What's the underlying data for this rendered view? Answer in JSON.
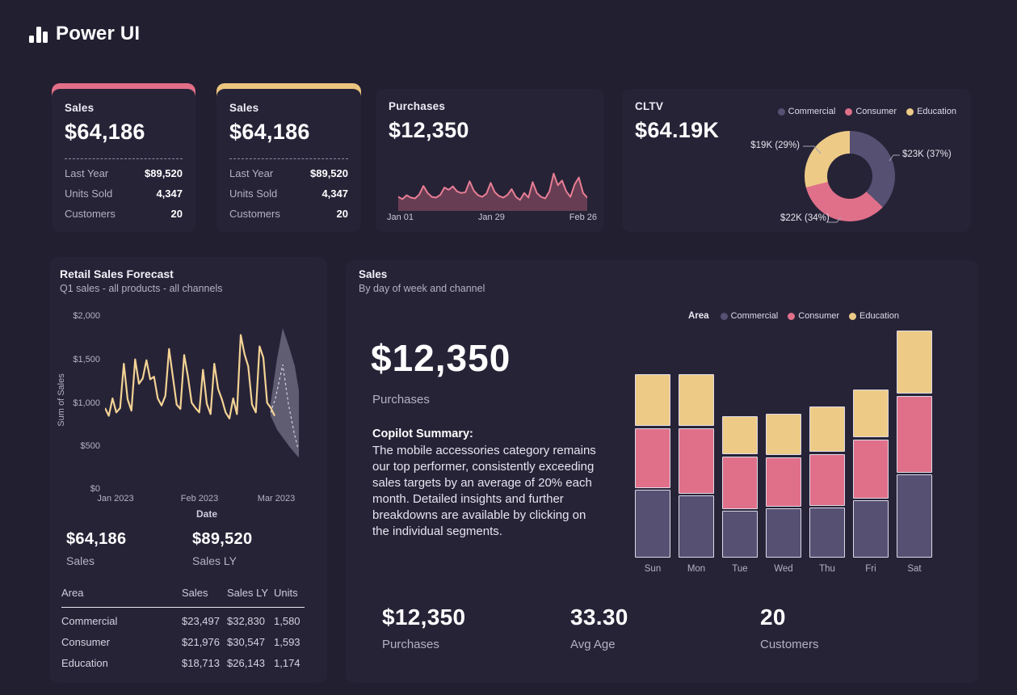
{
  "app": {
    "title": "Power UI"
  },
  "colors": {
    "page_bg": "#221f31",
    "card_bg": "#272337",
    "accent_pink": "#e26e87",
    "accent_gold": "#ecc57e",
    "commercial": "#565073",
    "consumer": "#e0708a",
    "education": "#edcb87",
    "line_gold": "#f3d394",
    "spark_pink": "#e87e95",
    "forecast_gray": "#9a96ab",
    "text_secondary": "#b5b1c4"
  },
  "kpi_cards": [
    {
      "title": "Sales",
      "value": "$64,186",
      "accent": "#e26e87",
      "rows": [
        {
          "label": "Last Year",
          "value": "$89,520"
        },
        {
          "label": "Units Sold",
          "value": "4,347"
        },
        {
          "label": "Customers",
          "value": "20"
        }
      ]
    },
    {
      "title": "Sales",
      "value": "$64,186",
      "accent": "#ecc57e",
      "rows": [
        {
          "label": "Last Year",
          "value": "$89,520"
        },
        {
          "label": "Units Sold",
          "value": "4,347"
        },
        {
          "label": "Customers",
          "value": "20"
        }
      ]
    }
  ],
  "purchases_card": {
    "title": "Purchases",
    "value": "$12,350",
    "x_ticks": [
      "Jan 01",
      "Jan 29",
      "Feb 26"
    ]
  },
  "cltv_card": {
    "title": "CLTV",
    "value": "$64.19K",
    "legend": [
      "Commercial",
      "Consumer",
      "Education"
    ],
    "callouts": {
      "education": "$19K (29%)",
      "commercial": "$23K (37%)",
      "consumer": "$22K (34%)"
    }
  },
  "forecast_card": {
    "title": "Retail Sales Forecast",
    "subtitle": "Q1 sales - all products - all channels",
    "ylabel": "Sum of Sales",
    "xlabel": "Date",
    "y_ticks": [
      "$2,000",
      "$1,500",
      "$1,000",
      "$500",
      "$0"
    ],
    "x_ticks": [
      "Jan 2023",
      "Feb 2023",
      "Mar 2023"
    ],
    "kpis": [
      {
        "value": "$64,186",
        "label": "Sales"
      },
      {
        "value": "$89,520",
        "label": "Sales LY"
      }
    ],
    "table": {
      "columns": [
        "Area",
        "Sales",
        "Sales LY",
        "Units"
      ],
      "rows": [
        [
          "Commercial",
          "$23,497",
          "$32,830",
          "1,580"
        ],
        [
          "Consumer",
          "$21,976",
          "$30,547",
          "1,593"
        ],
        [
          "Education",
          "$18,713",
          "$26,143",
          "1,174"
        ]
      ]
    }
  },
  "sales_card": {
    "title": "Sales",
    "subtitle": "By day of week and channel",
    "legend_title": "Area",
    "legend": [
      "Commercial",
      "Consumer",
      "Education"
    ],
    "value": "$12,350",
    "value_label": "Purchases",
    "copilot_title": "Copilot Summary:",
    "copilot_text": "The mobile accessories category remains our top performer, consistently exceeding sales targets by an average of 20% each month. Detailed insights and further breakdowns are available by clicking on the individual segments.",
    "kpis": [
      {
        "value": "$12,350",
        "label": "Purchases"
      },
      {
        "value": "33.30",
        "label": "Avg Age"
      },
      {
        "value": "20",
        "label": "Customers"
      }
    ]
  },
  "chart_data": [
    {
      "id": "purchases_spark",
      "type": "area",
      "title": "Purchases",
      "total": "$12,350",
      "x_ticks": [
        "Jan 01",
        "Jan 29",
        "Feb 26"
      ],
      "ylim": [
        0,
        100
      ],
      "values": [
        28,
        22,
        32,
        26,
        24,
        34,
        56,
        38,
        28,
        26,
        33,
        52,
        46,
        55,
        42,
        38,
        40,
        68,
        44,
        32,
        28,
        36,
        64,
        40,
        30,
        26,
        33,
        48,
        28,
        20,
        38,
        26,
        66,
        38,
        28,
        24,
        42,
        88,
        58,
        70,
        42,
        28,
        60,
        78,
        38,
        26
      ]
    },
    {
      "id": "cltv_donut",
      "type": "pie",
      "title": "CLTV",
      "total": "$64.19K",
      "legend_position": "top-right",
      "slices": [
        {
          "label": "Commercial",
          "value_k": 23,
          "pct": 37,
          "callout": "$23K (37%)",
          "color_key": "commercial"
        },
        {
          "label": "Consumer",
          "value_k": 22,
          "pct": 34,
          "callout": "$22K (34%)",
          "color_key": "consumer"
        },
        {
          "label": "Education",
          "value_k": 19,
          "pct": 29,
          "callout": "$19K (29%)",
          "color_key": "education"
        }
      ]
    },
    {
      "id": "retail_forecast",
      "type": "line",
      "title": "Retail Sales Forecast",
      "subtitle": "Q1 sales - all products - all channels",
      "xlabel": "Date",
      "ylabel": "Sum of Sales",
      "ylim": [
        0,
        2000
      ],
      "y_ticks": [
        0,
        500,
        1000,
        1500,
        2000
      ],
      "x_ticks": [
        "Jan 2023",
        "Feb 2023",
        "Mar 2023"
      ],
      "data_width": 210,
      "values": [
        950,
        860,
        1060,
        900,
        950,
        1460,
        1050,
        920,
        1510,
        1230,
        1290,
        1500,
        1280,
        1310,
        1060,
        980,
        1090,
        1630,
        1310,
        990,
        940,
        1560,
        1310,
        1010,
        950,
        900,
        1390,
        1000,
        880,
        1460,
        1170,
        1050,
        900,
        830,
        1060,
        880,
        1790,
        1570,
        1430,
        990,
        900,
        1660,
        1530,
        1010,
        950,
        860
      ],
      "forecast": {
        "band": [
          {
            "x": 205,
            "top": 1000,
            "bottom": 860
          },
          {
            "x": 213,
            "top": 1520,
            "bottom": 700
          },
          {
            "x": 220,
            "top": 1870,
            "bottom": 610
          },
          {
            "x": 228,
            "top": 1650,
            "bottom": 510
          },
          {
            "x": 235,
            "top": 1430,
            "bottom": 430
          },
          {
            "x": 240,
            "top": 1150,
            "bottom": 380
          }
        ],
        "median": [
          {
            "x": 205,
            "v": 900
          },
          {
            "x": 211,
            "v": 1060
          },
          {
            "x": 220,
            "v": 1450
          },
          {
            "x": 227,
            "v": 1000
          },
          {
            "x": 234,
            "v": 670
          },
          {
            "x": 239,
            "v": 480
          }
        ]
      }
    },
    {
      "id": "sales_by_day",
      "type": "stacked_bar",
      "title": "Sales",
      "subtitle": "By day of week and channel",
      "legend_title": "Area",
      "categories": [
        "Sun",
        "Mon",
        "Tue",
        "Wed",
        "Thu",
        "Fri",
        "Sat"
      ],
      "stack_order_bottom_to_top": [
        "Commercial",
        "Consumer",
        "Education"
      ],
      "series": [
        {
          "name": "Commercial",
          "color_key": "commercial",
          "values": [
            3700,
            3390,
            2550,
            2690,
            2730,
            3130,
            4540
          ]
        },
        {
          "name": "Consumer",
          "color_key": "consumer",
          "values": [
            3260,
            3570,
            2860,
            2690,
            2820,
            3210,
            4180
          ]
        },
        {
          "name": "Education",
          "color_key": "education",
          "values": [
            2820,
            2820,
            2070,
            2250,
            2470,
            2600,
            3430
          ]
        }
      ]
    }
  ]
}
